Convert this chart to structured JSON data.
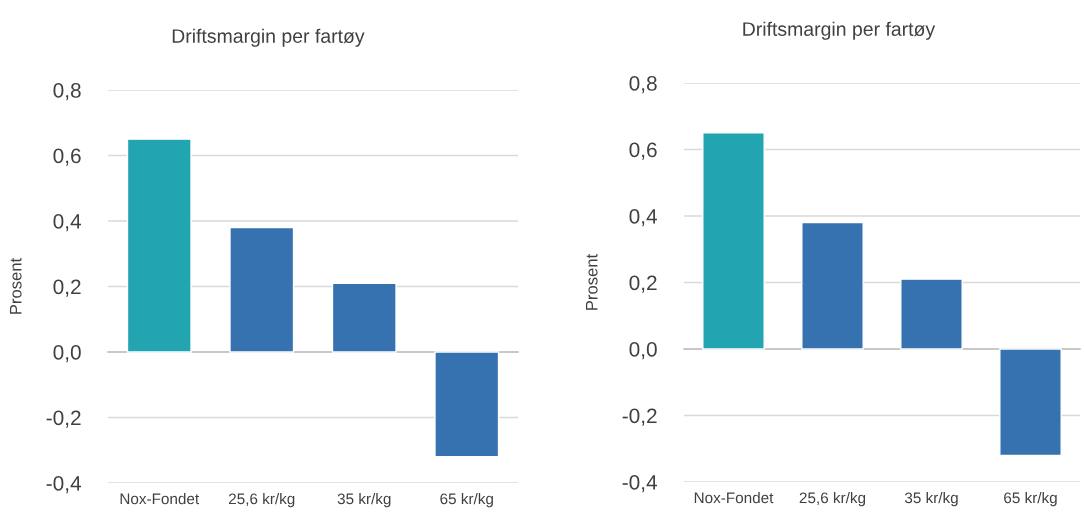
{
  "chart_data": [
    {
      "type": "bar",
      "title": "Driftsmargin per fartøy",
      "ylabel": "Prosent",
      "categories": [
        "Nox-Fondet",
        "25,6 kr/kg",
        "35 kr/kg",
        "65 kr/kg"
      ],
      "values": [
        0.65,
        0.38,
        0.21,
        -0.32
      ],
      "colors": [
        "#22a5b0",
        "#3671b0",
        "#3671b0",
        "#3671b0"
      ],
      "ylim": [
        -0.4,
        0.8
      ],
      "yticks": [
        {
          "value": -0.4,
          "label": "-0,4"
        },
        {
          "value": -0.2,
          "label": "-0,2"
        },
        {
          "value": 0.0,
          "label": "0,0"
        },
        {
          "value": 0.2,
          "label": "0,2"
        },
        {
          "value": 0.4,
          "label": "0,4"
        },
        {
          "value": 0.6,
          "label": "0,6"
        },
        {
          "value": 0.8,
          "label": "0,8"
        }
      ],
      "grid": "y"
    },
    {
      "type": "bar",
      "title": "Driftsmargin per fartøy",
      "ylabel": "Prosent",
      "categories": [
        "Nox-Fondet",
        "25,6 kr/kg",
        "35 kr/kg",
        "65 kr/kg"
      ],
      "values": [
        0.65,
        0.38,
        0.21,
        -0.32
      ],
      "colors": [
        "#22a5b0",
        "#3671b0",
        "#3671b0",
        "#3671b0"
      ],
      "ylim": [
        -0.4,
        0.8
      ],
      "yticks": [
        {
          "value": -0.4,
          "label": "-0,4"
        },
        {
          "value": -0.2,
          "label": "-0,2"
        },
        {
          "value": 0.0,
          "label": "0,0"
        },
        {
          "value": 0.2,
          "label": "0,2"
        },
        {
          "value": 0.4,
          "label": "0,4"
        },
        {
          "value": 0.6,
          "label": "0,6"
        },
        {
          "value": 0.8,
          "label": "0,8"
        }
      ],
      "grid": "y"
    }
  ]
}
